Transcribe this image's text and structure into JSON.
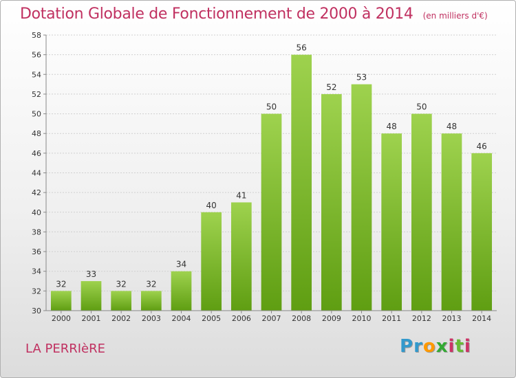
{
  "title": "Dotation Globale de Fonctionnement de 2000 à 2014",
  "unit": "(en milliers d'€)",
  "place": "LA PERRIèRE",
  "logo": {
    "letters": [
      "P",
      "r",
      "o",
      "x",
      "i",
      "t",
      "i"
    ],
    "colors": [
      "#3399cc",
      "#3399cc",
      "#ff9900",
      "#33aa33",
      "#cc3366",
      "#66bb33",
      "#cc3366"
    ]
  },
  "chart_data": {
    "type": "bar",
    "title": "Dotation Globale de Fonctionnement de 2000 à 2014",
    "subtitle": "(en milliers d'€)",
    "categories": [
      "2000",
      "2001",
      "2002",
      "2003",
      "2004",
      "2005",
      "2006",
      "2007",
      "2008",
      "2009",
      "2010",
      "2011",
      "2012",
      "2013",
      "2014"
    ],
    "values": [
      32,
      33,
      32,
      32,
      34,
      40,
      41,
      50,
      56,
      52,
      53,
      48,
      50,
      48,
      46
    ],
    "ylim": [
      30,
      58
    ],
    "yticks": [
      30,
      32,
      34,
      36,
      38,
      40,
      42,
      44,
      46,
      48,
      50,
      52,
      54,
      56,
      58
    ],
    "grid": true,
    "bar_color": "#7dc230"
  }
}
